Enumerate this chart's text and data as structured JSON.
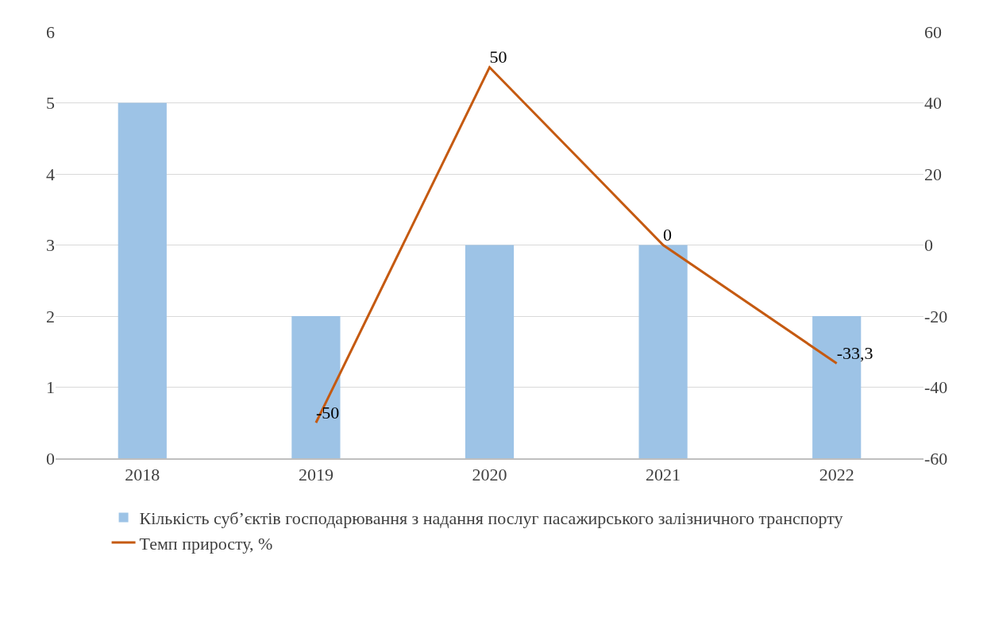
{
  "chart_data": {
    "type": "bar",
    "categories": [
      "2018",
      "2019",
      "2020",
      "2021",
      "2022"
    ],
    "series": [
      {
        "name": "Кількість суб’єктів господарювання з надання послуг пасажирського залізничного транспорту",
        "color": "#9dc3e6",
        "values": [
          5,
          2,
          3,
          3,
          2
        ]
      },
      {
        "name": "Темп приросту, %",
        "type": "line",
        "axis": "y2",
        "color": "#c55a11",
        "values": [
          null,
          -50,
          50,
          0,
          -33.3
        ],
        "value_labels": [
          null,
          "-50",
          "50",
          "0",
          "-33,3"
        ]
      }
    ],
    "ylim": [
      0,
      6
    ],
    "yticks": [
      0,
      1,
      2,
      3,
      4,
      5,
      6
    ],
    "y2lim": [
      -60,
      60
    ],
    "y2ticks": [
      -60,
      -40,
      -20,
      0,
      20,
      40,
      60
    ],
    "grid": "y",
    "legend": "bottom",
    "marker": "none",
    "line_style": "solid"
  }
}
